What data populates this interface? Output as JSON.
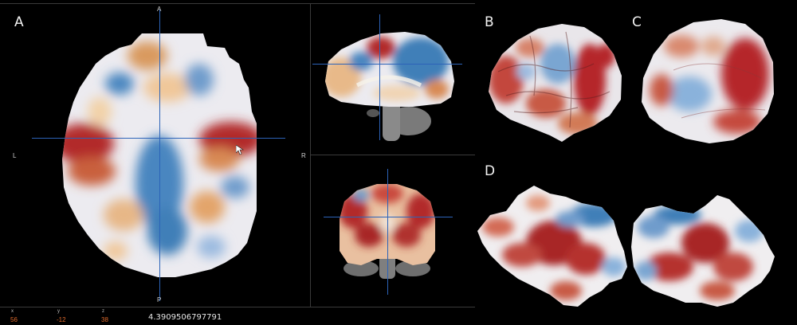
{
  "panels": {
    "a": {
      "letter": "A"
    },
    "b": {
      "letter": "B"
    },
    "c": {
      "letter": "C"
    },
    "d": {
      "letter": "D"
    }
  },
  "orientation": {
    "anterior": "A",
    "posterior": "P",
    "left": "L",
    "right": "R"
  },
  "coords": {
    "x": {
      "label": "x",
      "value": "56"
    },
    "y": {
      "label": "y",
      "value": "-12"
    },
    "z": {
      "label": "z",
      "value": "38"
    }
  },
  "voxel_value": "4.3909506797791",
  "colors": {
    "background": "#000000",
    "crosshair": "#2c63b8",
    "positive": "#b5252a",
    "negative": "#3f7fb8",
    "neutral": "#ecebf0",
    "coord_value": "#e06a2c"
  },
  "icons": {
    "cursor": "pointer-arrow-icon"
  }
}
